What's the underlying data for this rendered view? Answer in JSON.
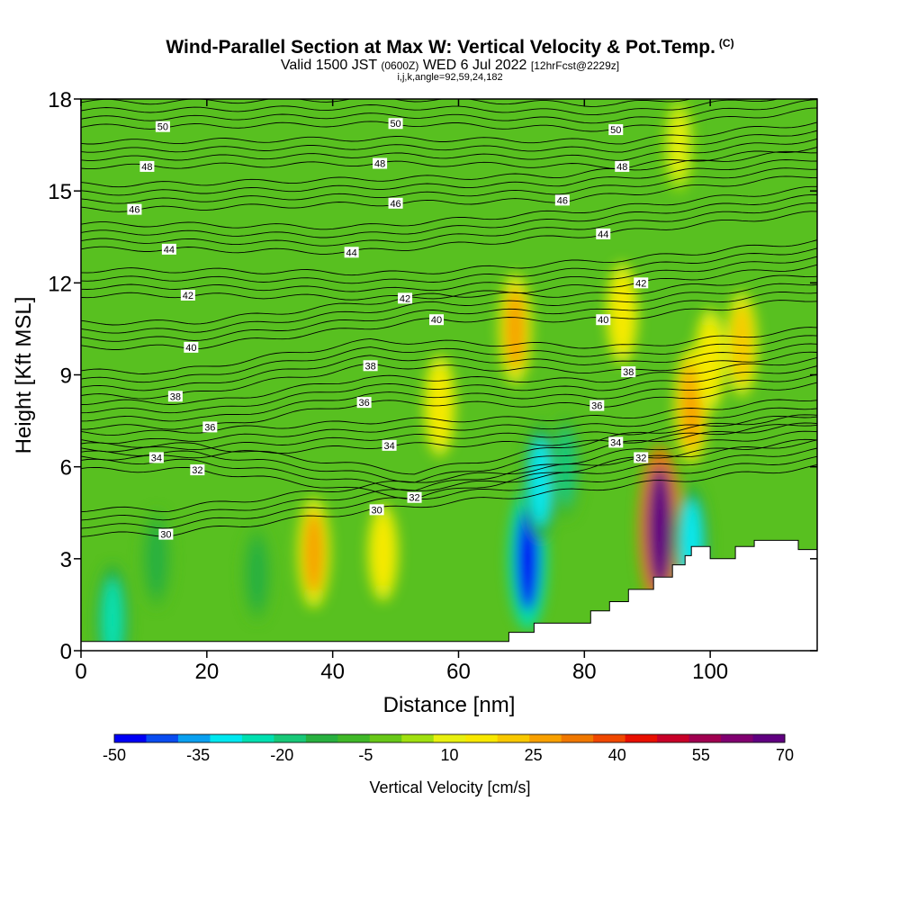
{
  "title": {
    "main": "Wind-Parallel Section at Max W: Vertical Velocity & Pot.Temp.",
    "copyright": "(C)",
    "valid_prefix": "Valid 1500 JST",
    "utc_time": "(0600Z)",
    "valid_date": "WED 6 Jul 2022",
    "forecast_info": "[12hrFcst@2229z]",
    "grid_info": "i,j,k,angle=92,59,24,182"
  },
  "chart_data": {
    "type": "heatmap",
    "xlabel": "Distance [nm]",
    "ylabel": "Height [Kft MSL]",
    "xlim": [
      0,
      117
    ],
    "ylim": [
      0,
      18
    ],
    "x_ticks": [
      0,
      20,
      40,
      60,
      80,
      100
    ],
    "x_tick_labels": [
      "0",
      "20",
      "40",
      "60",
      "80",
      "100"
    ],
    "y_ticks": [
      0,
      3,
      6,
      9,
      12,
      15,
      18
    ],
    "y_tick_labels": [
      "0",
      "3",
      "6",
      "9",
      "12",
      "15",
      "18"
    ],
    "colorbar": {
      "label": "Vertical Velocity [cm/s]",
      "tick_labels": [
        "-50",
        "-35",
        "-20",
        "-5",
        "10",
        "25",
        "40",
        "55",
        "70"
      ],
      "colors": [
        "#0000f5",
        "#0a4cf0",
        "#0aa0f0",
        "#00e8f0",
        "#00e0b0",
        "#18c878",
        "#28b040",
        "#40b828",
        "#68c818",
        "#a0e010",
        "#e8f010",
        "#f8e800",
        "#f8c800",
        "#f8a000",
        "#f07800",
        "#f04800",
        "#e81000",
        "#c80028",
        "#a00050",
        "#800070",
        "#600080"
      ]
    },
    "terrain": [
      [
        0,
        0.3
      ],
      [
        68,
        0.3
      ],
      [
        68,
        0.6
      ],
      [
        72,
        0.6
      ],
      [
        72,
        0.9
      ],
      [
        81,
        0.9
      ],
      [
        81,
        1.3
      ],
      [
        84,
        1.3
      ],
      [
        84,
        1.6
      ],
      [
        87,
        1.6
      ],
      [
        87,
        2.0
      ],
      [
        91,
        2.0
      ],
      [
        91,
        2.4
      ],
      [
        94,
        2.4
      ],
      [
        94,
        2.8
      ],
      [
        96,
        2.8
      ],
      [
        96,
        3.1
      ],
      [
        97,
        3.1
      ],
      [
        97,
        3.4
      ],
      [
        100,
        3.4
      ],
      [
        100,
        3.0
      ],
      [
        104,
        3.0
      ],
      [
        104,
        3.4
      ],
      [
        107,
        3.4
      ],
      [
        107,
        3.6
      ],
      [
        114,
        3.6
      ],
      [
        114,
        3.3
      ],
      [
        117,
        3.3
      ]
    ],
    "vertical_velocity_features": [
      {
        "x": 5,
        "z": 1.0,
        "w": -25
      },
      {
        "x": 12,
        "z": 3.0,
        "w": -15
      },
      {
        "x": 28,
        "z": 2.5,
        "w": -12
      },
      {
        "x": 37,
        "z": 3.2,
        "w": 25
      },
      {
        "x": 48,
        "z": 3.2,
        "w": 15
      },
      {
        "x": 57,
        "z": 8.0,
        "w": 18
      },
      {
        "x": 69,
        "z": 10.5,
        "w": 25
      },
      {
        "x": 71,
        "z": 3.0,
        "w": -48
      },
      {
        "x": 73,
        "z": 5.5,
        "w": -30
      },
      {
        "x": 77,
        "z": 6.0,
        "w": -20
      },
      {
        "x": 86,
        "z": 11.0,
        "w": 18
      },
      {
        "x": 92,
        "z": 4.0,
        "w": 65
      },
      {
        "x": 97,
        "z": 8.0,
        "w": 28
      },
      {
        "x": 97,
        "z": 3.5,
        "w": -30
      },
      {
        "x": 100,
        "z": 9.5,
        "w": 18
      },
      {
        "x": 105,
        "z": 10.0,
        "w": 20
      },
      {
        "x": 95,
        "z": 16.5,
        "w": 12
      }
    ],
    "theta_contours": [
      {
        "level": 30,
        "label": "30",
        "label_points": [
          [
            13.5,
            3.8
          ],
          [
            47,
            4.6
          ]
        ]
      },
      {
        "level": 32,
        "label": "32",
        "label_points": [
          [
            18.5,
            5.9
          ],
          [
            53,
            5.0
          ],
          [
            89,
            6.3
          ]
        ]
      },
      {
        "level": 34,
        "label": "34",
        "label_points": [
          [
            12,
            6.3
          ],
          [
            49,
            6.7
          ],
          [
            85,
            6.8
          ]
        ]
      },
      {
        "level": 36,
        "label": "36",
        "label_points": [
          [
            20.5,
            7.3
          ],
          [
            45,
            8.1
          ],
          [
            82,
            8.0
          ]
        ]
      },
      {
        "level": 38,
        "label": "38",
        "label_points": [
          [
            15,
            8.3
          ],
          [
            46,
            9.3
          ],
          [
            87,
            9.1
          ]
        ]
      },
      {
        "level": 40,
        "label": "40",
        "label_points": [
          [
            17.5,
            9.9
          ],
          [
            56.5,
            10.8
          ],
          [
            83,
            10.8
          ]
        ]
      },
      {
        "level": 42,
        "label": "42",
        "label_points": [
          [
            17,
            11.6
          ],
          [
            51.5,
            11.5
          ],
          [
            89,
            12.0
          ]
        ]
      },
      {
        "level": 44,
        "label": "44",
        "label_points": [
          [
            14,
            13.1
          ],
          [
            43,
            13.0
          ],
          [
            83,
            13.6
          ]
        ]
      },
      {
        "level": 46,
        "label": "46",
        "label_points": [
          [
            8.5,
            14.4
          ],
          [
            50,
            14.6
          ],
          [
            76.5,
            14.7
          ]
        ]
      },
      {
        "level": 48,
        "label": "48",
        "label_points": [
          [
            10.5,
            15.8
          ],
          [
            47.5,
            15.9
          ],
          [
            86,
            15.8
          ]
        ]
      },
      {
        "level": 50,
        "label": "50",
        "label_points": [
          [
            13,
            17.1
          ],
          [
            50,
            17.2
          ],
          [
            85,
            17.0
          ]
        ]
      }
    ]
  }
}
